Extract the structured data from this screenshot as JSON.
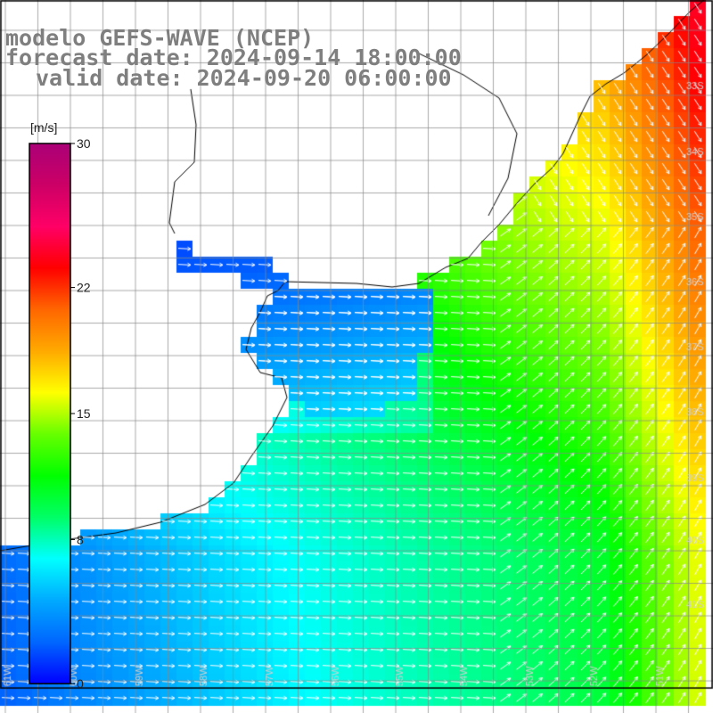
{
  "title": {
    "line1": "modelo GEFS-WAVE (NCEP)",
    "line2": "forecast date: 2024-09-14 18:00:00",
    "line3": "valid date: 2024-09-20 06:00:00"
  },
  "colorbar": {
    "unit": "[m/s]",
    "ticks": [
      {
        "label": "30",
        "value": 30
      },
      {
        "label": "22",
        "value": 22
      },
      {
        "label": "15",
        "value": 15
      },
      {
        "label": "8",
        "value": 8
      },
      {
        "label": "0",
        "value": 0
      }
    ],
    "range": [
      0,
      30
    ],
    "colors": [
      "#0000ff",
      "#0066ff",
      "#00aaff",
      "#00ffff",
      "#00ff66",
      "#00ff00",
      "#66ff00",
      "#ffff00",
      "#ffaa00",
      "#ff6600",
      "#ff0000",
      "#ff0066",
      "#cc0066",
      "#aa0077"
    ]
  },
  "map": {
    "lat_labels": [
      "33S",
      "34S",
      "35S",
      "36S",
      "37S",
      "38S",
      "39S",
      "40S",
      "41S"
    ],
    "lon_labels": [
      "61W",
      "60W",
      "59W",
      "58W",
      "57W",
      "56W",
      "55W",
      "54W",
      "53W",
      "52W",
      "51W"
    ],
    "lon_range": [
      -61.5,
      -50.5
    ],
    "lat_range": [
      -41.5,
      -30
    ],
    "grid_step_lon": 0.5,
    "grid_step_lat": 0.5,
    "land_color": "#ffffff",
    "arrow_color": "#ffffff",
    "grid_color": "#888888",
    "wind_direction": "from southwest/west toward east-northeast"
  }
}
